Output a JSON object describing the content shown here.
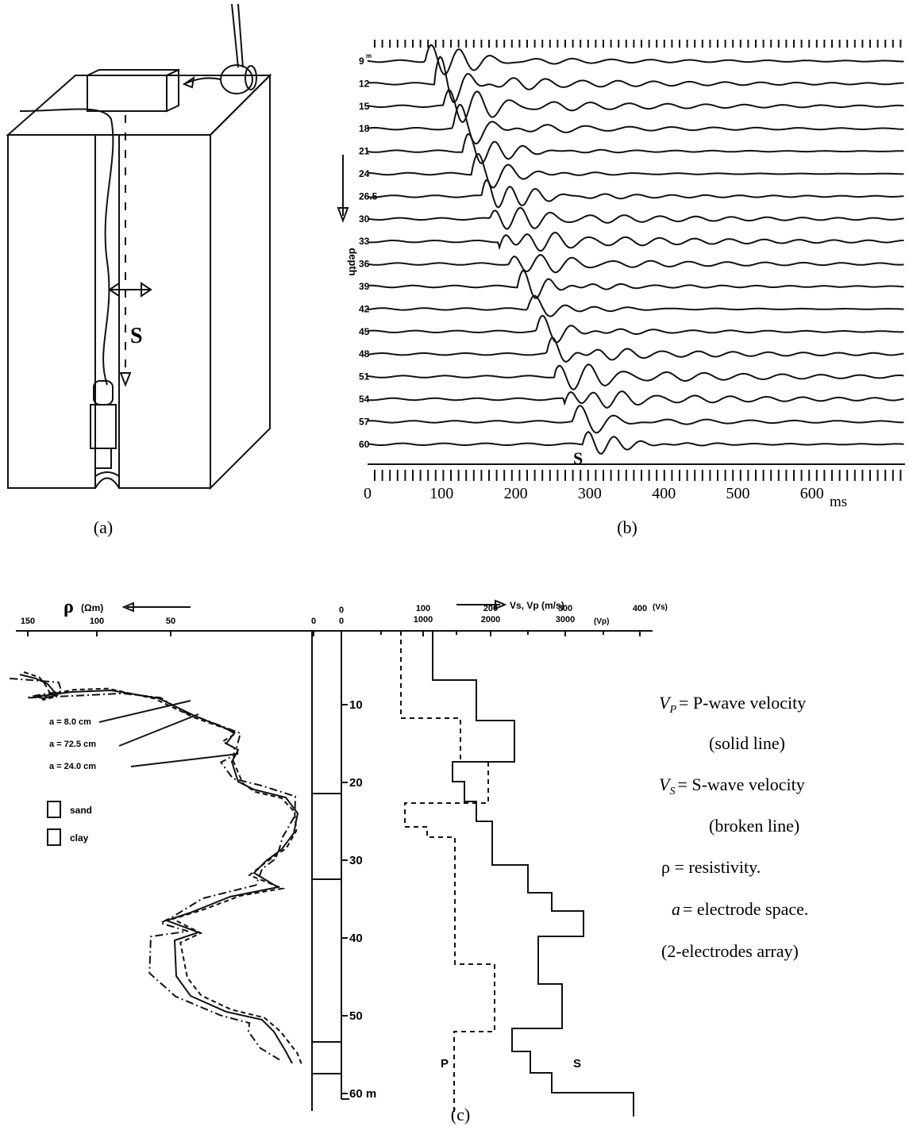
{
  "panel_a": {
    "label": "(a)",
    "source_label": "S"
  },
  "panel_b": {
    "label": "(b)",
    "depth_label": "depth",
    "first_depth_unit": "m",
    "depths": [
      "9",
      "12",
      "15",
      "18",
      "21",
      "24",
      "26.5",
      "30",
      "33",
      "36",
      "39",
      "42",
      "45",
      "48",
      "51",
      "54",
      "57",
      "60"
    ],
    "time_ticks": [
      "0",
      "100",
      "200",
      "300",
      "400",
      "500",
      "600"
    ],
    "time_unit": "ms",
    "wave_label": "S"
  },
  "panel_c": {
    "label": "(c)",
    "rho_axis": {
      "symbol": "ρ",
      "unit": "(Ωm)",
      "ticks": [
        "150",
        "100",
        "50",
        "0"
      ]
    },
    "velocity_axis": {
      "title": "Vs, Vp (m/s)",
      "vs_ticks": [
        "0",
        "100",
        "200",
        "300",
        "400"
      ],
      "vs_unit": "(Vs)",
      "vp_ticks": [
        "0",
        "1000",
        "2000",
        "3000"
      ],
      "vp_unit": "(Vp)"
    },
    "depth_ticks": [
      "10",
      "20",
      "30",
      "40",
      "50",
      "60 m"
    ],
    "electrode_labels": [
      "a = 8.0 cm",
      "a = 72.5 cm",
      "a = 24.0 cm"
    ],
    "lithology_legend": [
      "sand",
      "clay"
    ],
    "curve_labels": [
      "P",
      "S"
    ]
  },
  "legend": [
    {
      "symbol": "V",
      "sub": "P",
      "text": "= P-wave velocity"
    },
    {
      "text": "(solid line)"
    },
    {
      "symbol": "V",
      "sub": "S",
      "text": "= S-wave velocity"
    },
    {
      "text": "(broken line)"
    },
    {
      "text": "ρ  = resistivity."
    },
    {
      "symbol": "a",
      "text": "= electrode space."
    },
    {
      "text": "(2-electrodes array)"
    }
  ]
}
